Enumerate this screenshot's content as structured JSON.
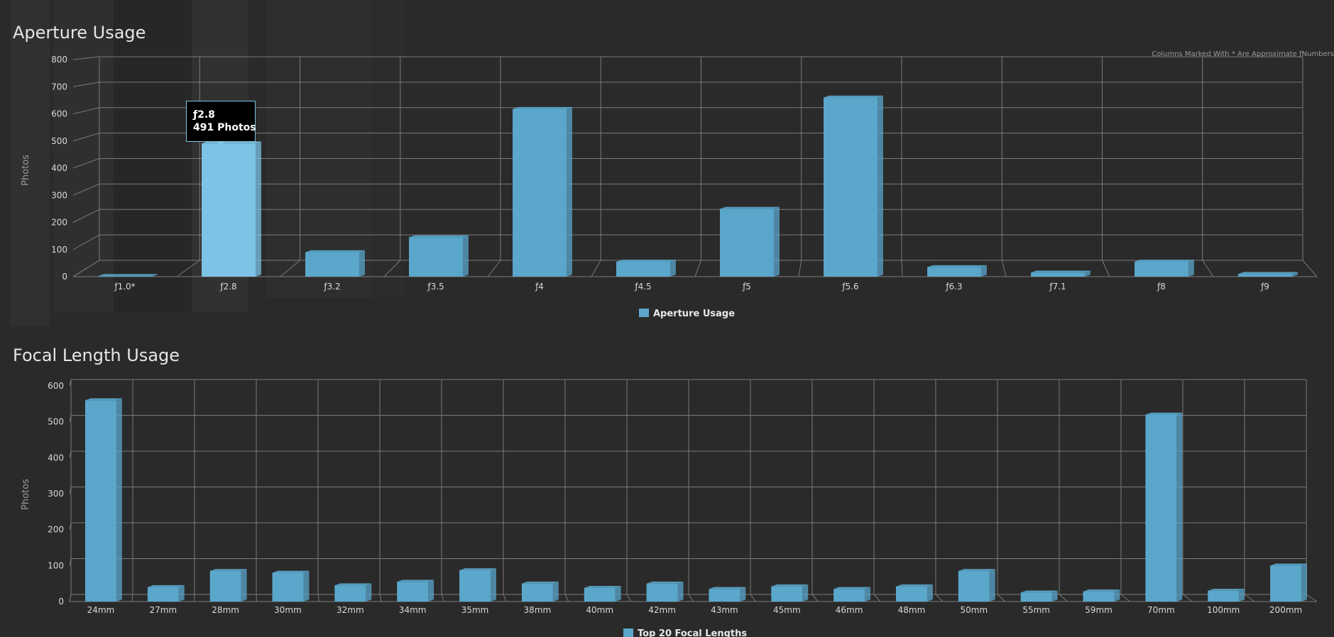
{
  "charts": [
    {
      "title": "Aperture Usage",
      "note": "Columns Marked With * Are Approximate ƒNumbers",
      "legend": "Aperture Usage",
      "tooltip": {
        "line1": "ƒ2.8",
        "line2": "491 Photos"
      },
      "highlight_index": 1
    },
    {
      "title": "Focal Length Usage",
      "legend": "Top 20 Focal Lengths"
    }
  ],
  "colors": {
    "bar": "#5ba7cc",
    "bar_highlight": "#7cc3e6",
    "grid": "#7a7a7a",
    "background": "#2a2a2a"
  },
  "chart_data": [
    {
      "type": "bar",
      "title": "Aperture Usage",
      "ylabel": "Photos",
      "ylim": [
        0,
        800
      ],
      "yticks": [
        0,
        100,
        200,
        300,
        400,
        500,
        600,
        700,
        800
      ],
      "categories": [
        "ƒ1.0*",
        "ƒ2.8",
        "ƒ3.2",
        "ƒ3.5",
        "ƒ4",
        "ƒ4.5",
        "ƒ5",
        "ƒ5.6",
        "ƒ6.3",
        "ƒ7.1",
        "ƒ8",
        "ƒ9"
      ],
      "series": [
        {
          "name": "Aperture Usage",
          "values": [
            2,
            491,
            90,
            145,
            618,
            55,
            250,
            660,
            35,
            15,
            55,
            10
          ]
        }
      ],
      "legend_position": "bottom-center",
      "grid": true
    },
    {
      "type": "bar",
      "title": "Focal Length Usage",
      "ylabel": "Photos",
      "ylim": [
        0,
        600
      ],
      "yticks": [
        0,
        100,
        200,
        300,
        400,
        500,
        600
      ],
      "categories": [
        "24mm",
        "27mm",
        "28mm",
        "30mm",
        "32mm",
        "34mm",
        "35mm",
        "38mm",
        "40mm",
        "42mm",
        "43mm",
        "45mm",
        "46mm",
        "48mm",
        "50mm",
        "55mm",
        "59mm",
        "70mm",
        "100mm",
        "200mm"
      ],
      "series": [
        {
          "name": "Top 20 Focal Lengths",
          "values": [
            560,
            40,
            85,
            80,
            45,
            55,
            87,
            50,
            38,
            50,
            35,
            42,
            35,
            42,
            85,
            25,
            28,
            520,
            30,
            100
          ]
        }
      ],
      "legend_position": "bottom-center",
      "grid": true
    }
  ]
}
